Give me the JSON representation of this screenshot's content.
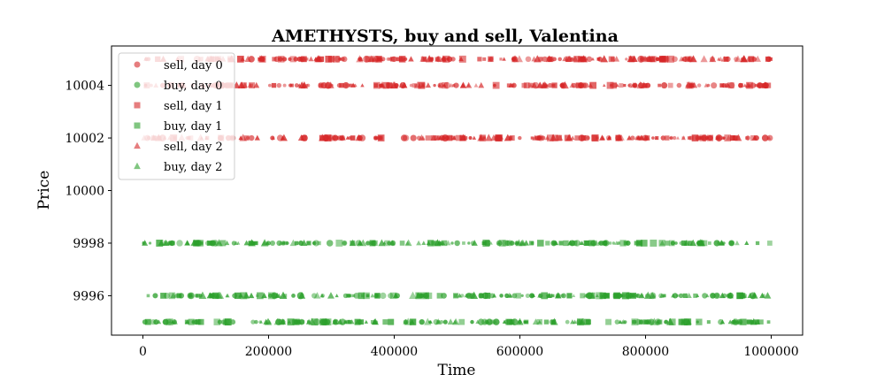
{
  "chart_data": {
    "type": "scatter",
    "title": "AMETHYSTS, buy and sell, Valentina",
    "xlabel": "Time",
    "ylabel": "Price",
    "xlim": [
      -50000,
      1050000
    ],
    "ylim": [
      9994.5,
      10005.5
    ],
    "xticks": [
      0,
      200000,
      400000,
      600000,
      800000,
      1000000
    ],
    "xtick_labels": [
      "0",
      "200000",
      "400000",
      "600000",
      "800000",
      "1000000"
    ],
    "yticks": [
      9996,
      9998,
      10000,
      10002,
      10004
    ],
    "ytick_labels": [
      "9996",
      "9998",
      "10000",
      "10002",
      "10004"
    ],
    "grid": false,
    "legend_position": "upper-left",
    "series": [
      {
        "name": "sell, day 0",
        "side": "sell",
        "day": 0,
        "marker": "circle",
        "color": "#d62728",
        "price_levels": [
          10005,
          10004,
          10002
        ],
        "x_range": [
          0,
          1000000
        ]
      },
      {
        "name": "buy, day 0",
        "side": "buy",
        "day": 0,
        "marker": "circle",
        "color": "#2ca02c",
        "price_levels": [
          9998,
          9996,
          9995
        ],
        "x_range": [
          0,
          1000000
        ]
      },
      {
        "name": "sell, day 1",
        "side": "sell",
        "day": 1,
        "marker": "square",
        "color": "#d62728",
        "price_levels": [
          10005,
          10004,
          10002
        ],
        "x_range": [
          0,
          1000000
        ]
      },
      {
        "name": "buy, day 1",
        "side": "buy",
        "day": 1,
        "marker": "square",
        "color": "#2ca02c",
        "price_levels": [
          9998,
          9996,
          9995
        ],
        "x_range": [
          0,
          1000000
        ]
      },
      {
        "name": "sell, day 2",
        "side": "sell",
        "day": 2,
        "marker": "triangle",
        "color": "#d62728",
        "price_levels": [
          10005,
          10004,
          10002
        ],
        "x_range": [
          0,
          1000000
        ]
      },
      {
        "name": "buy, day 2",
        "side": "buy",
        "day": 2,
        "marker": "triangle",
        "color": "#2ca02c",
        "price_levels": [
          9998,
          9996,
          9995
        ],
        "x_range": [
          0,
          1000000
        ]
      }
    ]
  }
}
